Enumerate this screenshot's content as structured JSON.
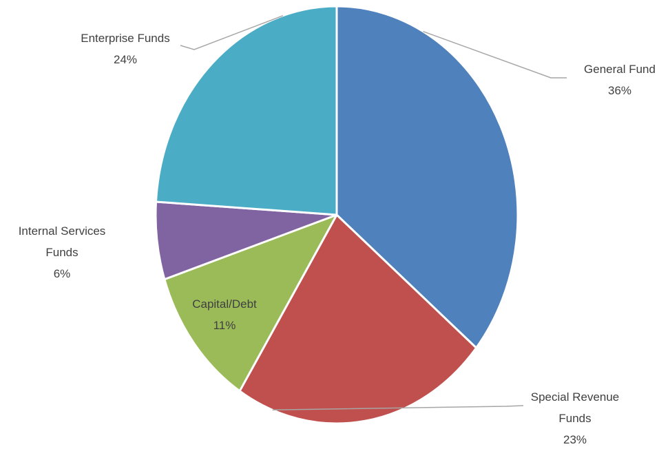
{
  "chart_data": {
    "type": "pie",
    "slices": [
      {
        "name": "General Fund",
        "label_lines": [
          "General Fund"
        ],
        "percent_label": "36%",
        "value": 36,
        "color": "#4f81bd"
      },
      {
        "name": "Special Revenue Funds",
        "label_lines": [
          "Special Revenue",
          "Funds"
        ],
        "percent_label": "23%",
        "value": 23,
        "color": "#c0504d"
      },
      {
        "name": "Capital/Debt",
        "label_lines": [
          "Capital/Debt"
        ],
        "percent_label": "11%",
        "value": 11,
        "color": "#9bbb59"
      },
      {
        "name": "Internal Services Funds",
        "label_lines": [
          "Internal Services",
          "Funds"
        ],
        "percent_label": "6%",
        "value": 6,
        "color": "#8064a2"
      },
      {
        "name": "Enterprise Funds",
        "label_lines": [
          "Enterprise Funds"
        ],
        "percent_label": "24%",
        "value": 24,
        "color": "#4bacc6"
      }
    ],
    "start": "12 o'clock",
    "direction": "clockwise",
    "legend": "none",
    "data_labels": "outside with leader lines, except Capital/Debt inside"
  }
}
